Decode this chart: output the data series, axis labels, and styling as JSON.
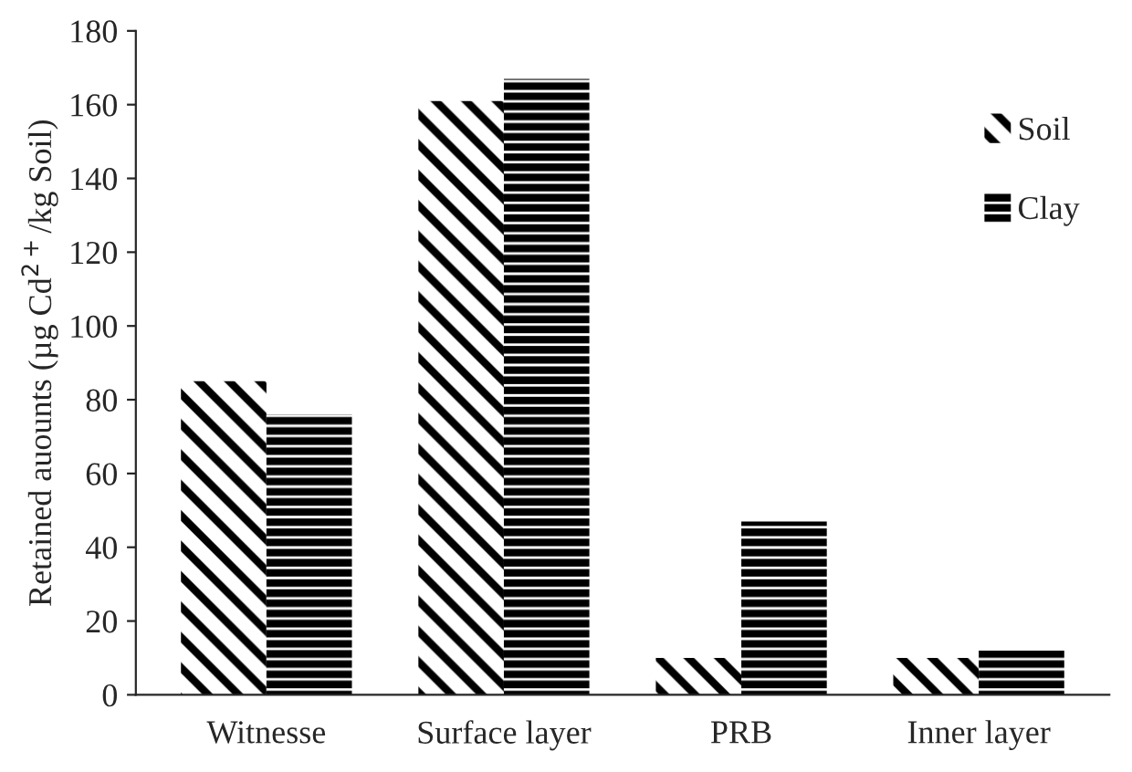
{
  "chart_data": {
    "type": "bar",
    "ylabel": "Retained auounts (µg Cd$^{2+}$/kg Soil)",
    "categories": [
      "Witnesse",
      "Surface layer",
      "PRB",
      "Inner layer"
    ],
    "series": [
      {
        "name": "Soil",
        "color": "#000000",
        "values": [
          85,
          161,
          10,
          10
        ]
      },
      {
        "name": "Clay",
        "color": "#000000",
        "values": [
          76,
          167,
          47,
          12
        ]
      }
    ],
    "ylim": [
      0,
      180
    ],
    "yticks": [
      0,
      20,
      40,
      60,
      80,
      100,
      120,
      140,
      160,
      180
    ],
    "grid": false,
    "legend": "top right"
  }
}
